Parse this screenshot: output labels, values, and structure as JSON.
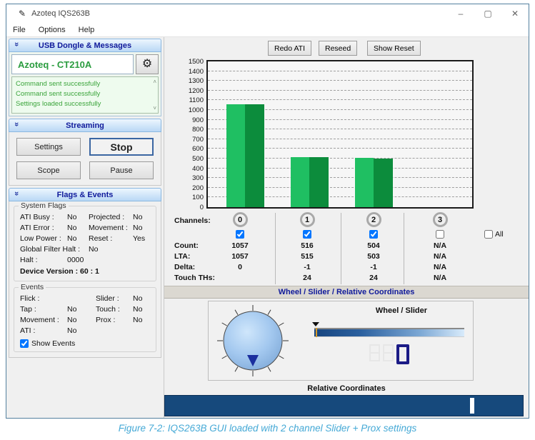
{
  "window": {
    "title": "Azoteq IQS263B",
    "controls": {
      "minimize": "–",
      "maximize": "▢",
      "close": "✕"
    }
  },
  "icons": {
    "app": "✎",
    "gear": "⚙",
    "chevron": "»",
    "msg_up": "˄",
    "msg_down": "˅"
  },
  "menu": {
    "items": [
      "File",
      "Options",
      "Help"
    ]
  },
  "sidebar": {
    "usb_panel": {
      "title": "USB Dongle & Messages",
      "device": "Azoteq - CT210A",
      "messages": [
        "Command sent successfully",
        "Command sent successfully",
        "Settings loaded successfully"
      ]
    },
    "streaming_panel": {
      "title": "Streaming",
      "buttons": [
        "Settings",
        "Stop",
        "Scope",
        "Pause"
      ]
    },
    "flags_panel": {
      "title": "Flags & Events",
      "system_flags": {
        "title": "System Flags",
        "rows": [
          [
            "ATI Busy :",
            "No",
            "Projected :",
            "No"
          ],
          [
            "ATI Error :",
            "No",
            "Movement :",
            "No"
          ],
          [
            "Low Power :",
            "No",
            "Reset :",
            "Yes"
          ]
        ],
        "global_label": "Global Filter Halt :",
        "global_value": "No",
        "halt_label": "Halt :",
        "halt_value": "0000",
        "device_version": "Device Version : 60 : 1"
      },
      "events": {
        "title": "Events",
        "rows": [
          [
            "Flick :",
            "",
            "Slider :",
            "No"
          ],
          [
            "Tap :",
            "No",
            "Touch :",
            "No"
          ],
          [
            "Movement :",
            "No",
            "Prox :",
            "No"
          ],
          [
            "ATI :",
            "No",
            "",
            ""
          ]
        ],
        "show_events_label": "Show Events",
        "show_events_checked": true
      }
    }
  },
  "toolbar": {
    "buttons": [
      "Redo ATI",
      "Reseed",
      "Show Reset"
    ]
  },
  "chart_data": {
    "type": "bar",
    "title": "",
    "xlabel": "",
    "ylabel": "",
    "categories": [
      "0",
      "1",
      "2",
      "3"
    ],
    "series": [
      {
        "name": "Count",
        "color": "#1fbf62",
        "values": [
          1057,
          516,
          504,
          null
        ]
      },
      {
        "name": "LTA",
        "color": "#0c8c3c",
        "values": [
          1057,
          515,
          503,
          null
        ]
      }
    ],
    "ylim": [
      0,
      1500
    ],
    "ytick_step": 100,
    "grid": "horizontal-dashed",
    "legend": "none"
  },
  "channels": {
    "label": "Channels:",
    "row_labels": {
      "count": "Count:",
      "lta": "LTA:",
      "delta": "Delta:",
      "touch": "Touch THs:"
    },
    "all_label": "All",
    "all_checked": false,
    "items": [
      {
        "id": "0",
        "checked": true,
        "count": "1057",
        "lta": "1057",
        "delta": "0",
        "touch_th": ""
      },
      {
        "id": "1",
        "checked": true,
        "count": "516",
        "lta": "515",
        "delta": "-1",
        "touch_th": "24"
      },
      {
        "id": "2",
        "checked": true,
        "count": "504",
        "lta": "503",
        "delta": "-1",
        "touch_th": "24"
      },
      {
        "id": "3",
        "checked": false,
        "count": "N/A",
        "lta": "N/A",
        "delta": "N/A",
        "touch_th": "N/A"
      }
    ]
  },
  "wheel_section": {
    "header": "Wheel / Slider / Relative Coordinates",
    "wheel_slider_label": "Wheel / Slider",
    "digit_value": "0",
    "relative_label": "Relative Coordinates"
  },
  "colors": {
    "accent_navy": "#101a9b",
    "device_green": "#2a9c3f",
    "bar_light": "#1fbf62",
    "bar_dark": "#0c8c3c",
    "relative_bar": "#16497c",
    "caption": "#45a9d6"
  },
  "caption": "Figure 7-2: IQS263B GUI loaded with 2 channel Slider + Prox settings"
}
